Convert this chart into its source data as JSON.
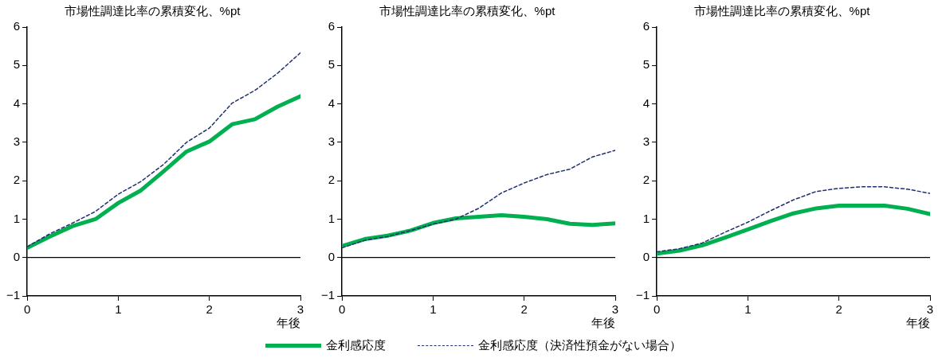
{
  "chart_data": [
    {
      "type": "line",
      "title": "市場性調達比率の累積変化、%pt",
      "xlabel": "年後",
      "x": [
        0,
        0.25,
        0.5,
        0.75,
        1,
        1.25,
        1.5,
        1.75,
        2,
        2.25,
        2.5,
        2.75,
        3
      ],
      "xlim": [
        0,
        3
      ],
      "xticks": [
        0,
        1,
        2,
        3
      ],
      "ylim": [
        -1,
        6
      ],
      "yticks": [
        -1,
        0,
        1,
        2,
        3,
        4,
        5,
        6
      ],
      "grid": false,
      "marker": "none",
      "legend": "bottom",
      "ref_lines": [
        {
          "axis": "y",
          "value": 0,
          "color": "#000000"
        }
      ],
      "series": [
        {
          "name": "金利感応度",
          "color": "#00b050",
          "line_style": "solid",
          "values": [
            0.25,
            0.55,
            0.82,
            1.0,
            1.42,
            1.75,
            2.25,
            2.76,
            3.02,
            3.47,
            3.6,
            3.93,
            4.2
          ]
        },
        {
          "name": "金利感応度（決済性預金がない場合）",
          "color": "#1f3070",
          "line_style": "dashed",
          "values": [
            0.28,
            0.62,
            0.9,
            1.2,
            1.65,
            1.98,
            2.43,
            3.0,
            3.37,
            4.02,
            4.35,
            4.8,
            5.33
          ]
        }
      ]
    },
    {
      "type": "line",
      "title": "市場性調達比率の累積変化、%pt",
      "xlabel": "年後",
      "x": [
        0,
        0.25,
        0.5,
        0.75,
        1,
        1.25,
        1.5,
        1.75,
        2,
        2.25,
        2.5,
        2.75,
        3
      ],
      "xlim": [
        0,
        3
      ],
      "xticks": [
        0,
        1,
        2,
        3
      ],
      "ylim": [
        -1,
        6
      ],
      "yticks": [
        -1,
        0,
        1,
        2,
        3,
        4,
        5,
        6
      ],
      "grid": false,
      "marker": "none",
      "ref_lines": [
        {
          "axis": "y",
          "value": 0,
          "color": "#000000"
        }
      ],
      "series": [
        {
          "color": "#00b050",
          "line_style": "solid",
          "values": [
            0.3,
            0.48,
            0.57,
            0.7,
            0.9,
            1.02,
            1.06,
            1.1,
            1.06,
            1.0,
            0.88,
            0.85,
            0.89
          ]
        },
        {
          "color": "#1f3070",
          "line_style": "dashed",
          "values": [
            0.25,
            0.45,
            0.55,
            0.7,
            0.87,
            1.0,
            1.28,
            1.68,
            1.94,
            2.16,
            2.3,
            2.62,
            2.79
          ]
        }
      ]
    },
    {
      "type": "line",
      "title": "市場性調達比率の累積変化、%pt",
      "xlabel": "年後",
      "x": [
        0,
        0.25,
        0.5,
        0.75,
        1,
        1.25,
        1.5,
        1.75,
        2,
        2.25,
        2.5,
        2.75,
        3
      ],
      "xlim": [
        0,
        3
      ],
      "xticks": [
        0,
        1,
        2,
        3
      ],
      "ylim": [
        -1,
        6
      ],
      "yticks": [
        -1,
        0,
        1,
        2,
        3,
        4,
        5,
        6
      ],
      "grid": false,
      "marker": "none",
      "ref_lines": [
        {
          "axis": "y",
          "value": 0,
          "color": "#000000"
        }
      ],
      "series": [
        {
          "color": "#00b050",
          "line_style": "solid",
          "values": [
            0.1,
            0.18,
            0.32,
            0.52,
            0.73,
            0.95,
            1.15,
            1.28,
            1.35,
            1.35,
            1.35,
            1.27,
            1.13
          ]
        },
        {
          "color": "#1f3070",
          "line_style": "dashed",
          "values": [
            0.15,
            0.23,
            0.38,
            0.66,
            0.92,
            1.22,
            1.5,
            1.72,
            1.8,
            1.84,
            1.84,
            1.78,
            1.67
          ]
        }
      ]
    }
  ]
}
